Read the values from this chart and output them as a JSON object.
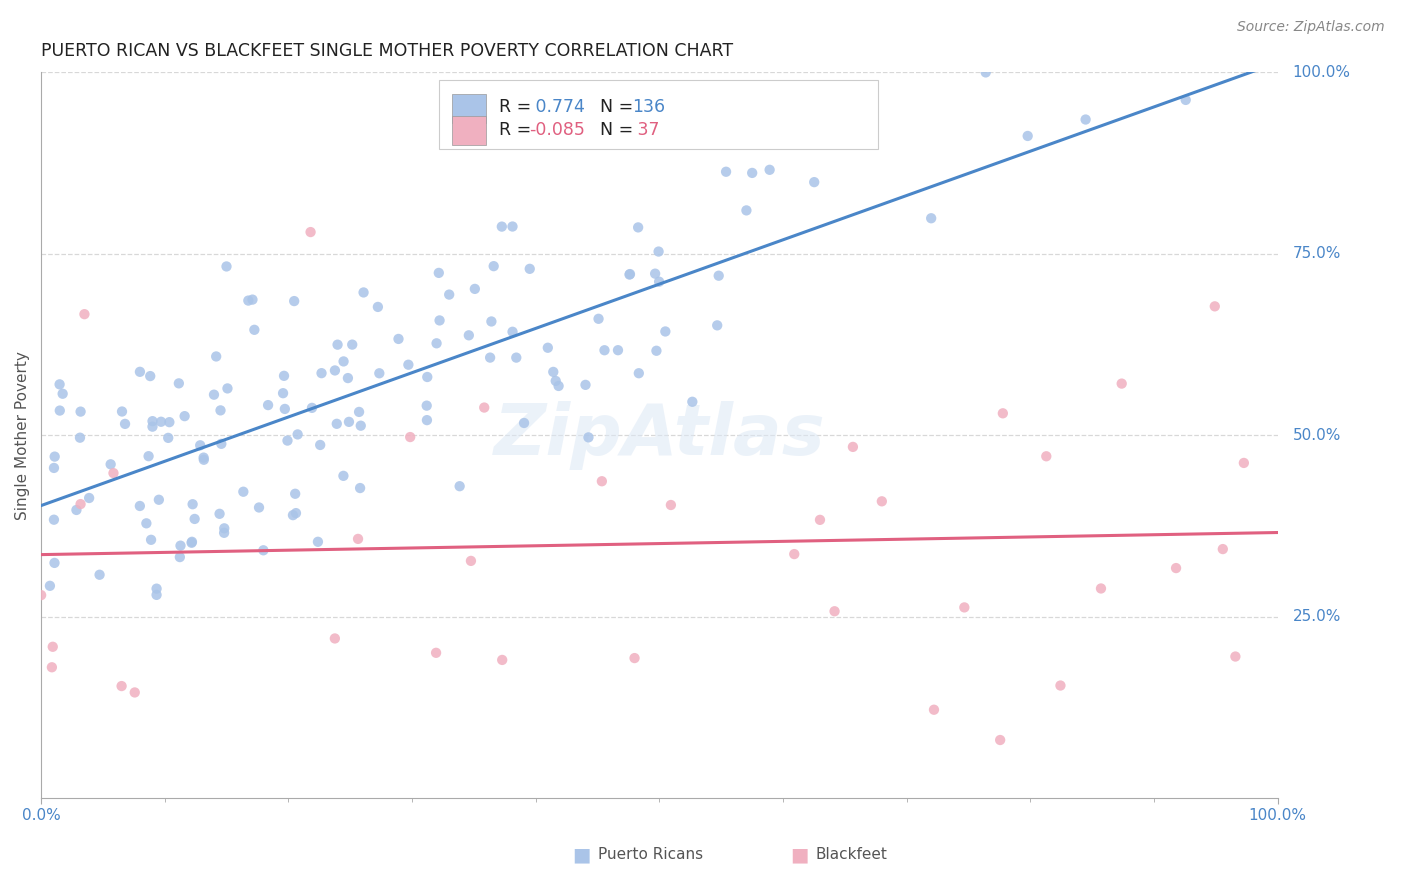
{
  "title": "PUERTO RICAN VS BLACKFEET SINGLE MOTHER POVERTY CORRELATION CHART",
  "source": "Source: ZipAtlas.com",
  "ylabel": "Single Mother Poverty",
  "xlim": [
    0.0,
    1.0
  ],
  "ylim": [
    0.0,
    1.0
  ],
  "y_tick_labels": [
    "25.0%",
    "50.0%",
    "75.0%",
    "100.0%"
  ],
  "y_tick_positions": [
    0.25,
    0.5,
    0.75,
    1.0
  ],
  "watermark": "ZipAtlas",
  "pr_color": "#aac4e8",
  "bf_color": "#f0b0c0",
  "pr_line_color": "#4a86c8",
  "bf_line_color": "#e06080",
  "background_color": "#ffffff",
  "grid_color": "#d8d8d8",
  "pr_label": "Puerto Ricans",
  "bf_label": "Blackfeet",
  "pr_R": "0.774",
  "pr_N": "136",
  "bf_R": "-0.085",
  "bf_N": "37",
  "value_color": "#4a86c8",
  "label_color": "#222222"
}
